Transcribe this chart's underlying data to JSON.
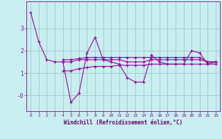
{
  "bg_color": "#c8eef0",
  "grid_color": "#a0ccc8",
  "line_color": "#990099",
  "marker": "+",
  "xlabel": "Windchill (Refroidissement éolien,°C)",
  "xlabel_color": "#660066",
  "tick_color": "#880088",
  "xlim": [
    -0.5,
    23.5
  ],
  "ylim": [
    -0.7,
    4.2
  ],
  "series": [
    [
      3.7,
      2.4,
      1.6,
      1.5,
      1.5,
      -0.3,
      0.1,
      1.9,
      2.6,
      1.6,
      1.5,
      1.4,
      0.8,
      0.6,
      0.6,
      1.8,
      1.5,
      1.4,
      1.4,
      1.4,
      2.0,
      1.9,
      1.4,
      1.5
    ],
    [
      null,
      null,
      null,
      null,
      1.1,
      1.1,
      1.2,
      1.25,
      1.3,
      1.3,
      1.3,
      1.35,
      1.35,
      1.35,
      1.35,
      1.4,
      1.4,
      1.4,
      1.4,
      1.4,
      1.4,
      1.4,
      1.4,
      1.4
    ],
    [
      null,
      null,
      null,
      null,
      1.6,
      1.6,
      1.65,
      1.7,
      1.7,
      1.7,
      1.7,
      1.7,
      1.7,
      1.7,
      1.7,
      1.7,
      1.7,
      1.7,
      1.7,
      1.7,
      1.7,
      1.7,
      1.5,
      1.5
    ],
    [
      null,
      null,
      null,
      null,
      1.5,
      1.5,
      1.6,
      1.6,
      1.6,
      1.6,
      1.6,
      1.6,
      1.5,
      1.5,
      1.5,
      1.6,
      1.6,
      1.6,
      1.6,
      1.6,
      1.6,
      1.6,
      1.5,
      1.5
    ]
  ]
}
